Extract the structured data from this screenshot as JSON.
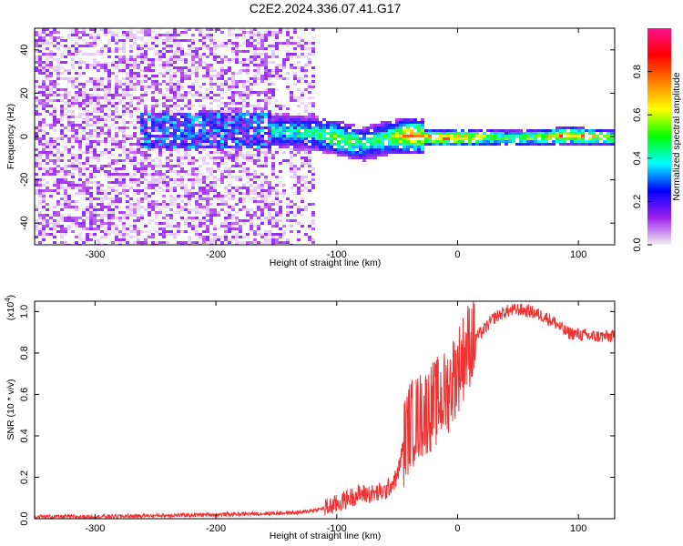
{
  "title": "C2E2.2024.336.07.41.G17",
  "colors": {
    "snr_line": "#ee3333",
    "colorbar_stops": [
      "#f0f0f0",
      "#a020f0",
      "#0000ff",
      "#00ffff",
      "#00ff00",
      "#ffff00",
      "#ff8000",
      "#ff0000",
      "#ff1090"
    ]
  },
  "chart_data": [
    {
      "type": "heatmap",
      "xlabel": "Height of straight line (km)",
      "ylabel": "Frequency (Hz)",
      "xlim": [
        -350,
        130
      ],
      "ylim": [
        -50,
        50
      ],
      "xticks": [
        -300,
        -200,
        -100,
        0,
        100
      ],
      "yticks": [
        -40,
        -20,
        0,
        20,
        40
      ],
      "colorbar": {
        "label": "Normalized spectral amplitude",
        "range": [
          0,
          1
        ],
        "ticks": [
          "0.0",
          "0.2",
          "0.4",
          "0.6",
          "0.8"
        ],
        "tick_values": [
          0,
          0.2,
          0.4,
          0.6,
          0.8
        ]
      },
      "regions": [
        {
          "x": [
            -350,
            -120
          ],
          "y": [
            -50,
            50
          ],
          "level": 0.12
        },
        {
          "x": [
            -265,
            -155
          ],
          "y": [
            -8,
            8
          ],
          "level": 0.3
        },
        {
          "x": [
            -150,
            -30
          ],
          "y": [
            -10,
            10
          ],
          "level": 0.45
        },
        {
          "x": [
            -30,
            130
          ],
          "y": [
            -3,
            3
          ],
          "level": 0.6
        }
      ],
      "ridge": [
        {
          "x": -150,
          "y": 3,
          "level": 0.45
        },
        {
          "x": -120,
          "y": 2,
          "level": 0.5
        },
        {
          "x": -100,
          "y": 0,
          "level": 0.65
        },
        {
          "x": -80,
          "y": -3,
          "level": 0.5
        },
        {
          "x": -60,
          "y": 0,
          "level": 0.55
        },
        {
          "x": -40,
          "y": 1,
          "level": 0.85
        },
        {
          "x": -20,
          "y": 0,
          "level": 0.8
        },
        {
          "x": 0,
          "y": 0,
          "level": 0.85
        },
        {
          "x": 30,
          "y": 0,
          "level": 0.6
        },
        {
          "x": 60,
          "y": 0,
          "level": 0.6
        },
        {
          "x": 90,
          "y": 1,
          "level": 0.85
        },
        {
          "x": 130,
          "y": 0,
          "level": 0.6
        }
      ]
    },
    {
      "type": "line",
      "xlabel": "Height of straight line (km)",
      "ylabel": "SNR (10 * v/v)",
      "y_multiplier": "(x10",
      "y_multiplier_exp": "4",
      "y_multiplier_close": ")",
      "xlim": [
        -350,
        130
      ],
      "ylim": [
        0,
        1.05
      ],
      "xticks": [
        -300,
        -200,
        -100,
        0,
        100
      ],
      "yticks": [
        0.0,
        0.2,
        0.4,
        0.6,
        0.8,
        1.0
      ],
      "series": [
        {
          "x": [
            -350,
            -300,
            -250,
            -200,
            -160,
            -130,
            -110,
            -100,
            -90,
            -80,
            -70,
            -60,
            -50,
            -45,
            -40,
            -30,
            -20,
            -10,
            0,
            10,
            20,
            30,
            40,
            50,
            60,
            70,
            80,
            90,
            100,
            110,
            120,
            130
          ],
          "y": [
            0.01,
            0.01,
            0.015,
            0.02,
            0.025,
            0.03,
            0.05,
            0.07,
            0.1,
            0.12,
            0.12,
            0.13,
            0.2,
            0.35,
            0.45,
            0.5,
            0.55,
            0.6,
            0.72,
            0.85,
            0.9,
            0.97,
            1.0,
            1.01,
            1.0,
            0.98,
            0.95,
            0.9,
            0.89,
            0.88,
            0.88,
            0.88
          ]
        }
      ]
    }
  ]
}
